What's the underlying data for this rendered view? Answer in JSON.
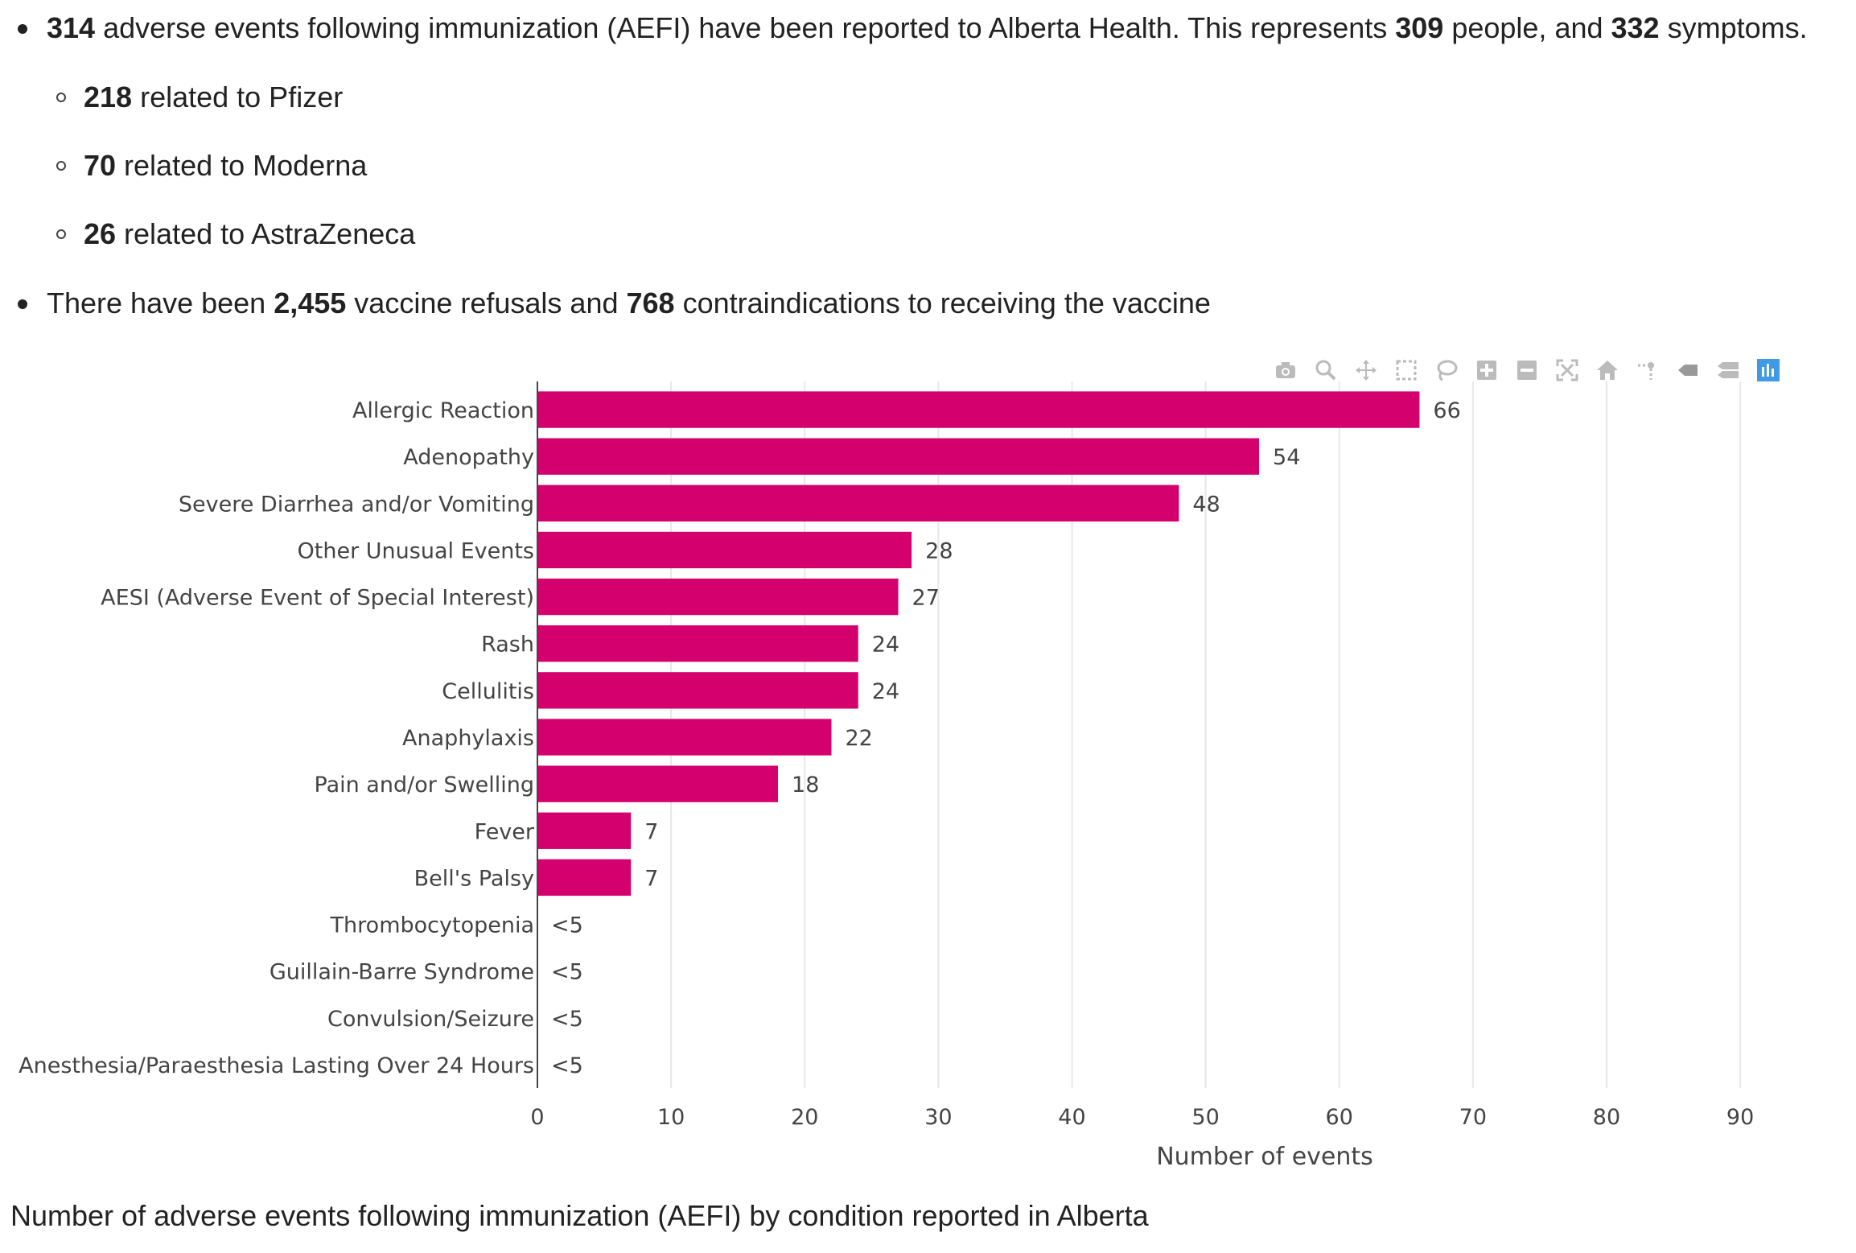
{
  "summary": {
    "line1": {
      "n1": "314",
      "t1": " adverse events following immunization (AEFI) have been reported to Alberta Health. This represents ",
      "n2": "309",
      "t2": " people, and ",
      "n3": "332",
      "t3": " symptoms."
    },
    "sub": [
      {
        "n": "218",
        "t": " related to Pfizer"
      },
      {
        "n": "70",
        "t": " related to Moderna"
      },
      {
        "n": "26",
        "t": " related to AstraZeneca"
      }
    ],
    "line2": {
      "t1": "There have been ",
      "n1": "2,455",
      "t2": " vaccine refusals and ",
      "n2": "768",
      "t3": " contraindications to receiving the vaccine"
    }
  },
  "modebar_icons": [
    "camera-icon",
    "zoom-icon",
    "pan-icon",
    "box-select-icon",
    "lasso-icon",
    "zoom-in-icon",
    "zoom-out-icon",
    "autoscale-icon",
    "reset-axes-icon",
    "spike-lines-icon",
    "hover-closest-icon",
    "hover-compare-icon",
    "plotly-logo-icon"
  ],
  "chart_data": {
    "type": "bar",
    "orientation": "horizontal",
    "categories": [
      "Allergic Reaction",
      "Adenopathy",
      "Severe Diarrhea and/or Vomiting",
      "Other Unusual Events",
      "AESI (Adverse Event of Special Interest)",
      "Rash",
      "Cellulitis",
      "Anaphylaxis",
      "Pain and/or Swelling",
      "Fever",
      "Bell's Palsy",
      "Thrombocytopenia",
      "Guillain-Barre Syndrome",
      "Convulsion/Seizure",
      "Anesthesia/Paraesthesia Lasting Over 24 Hours"
    ],
    "values": [
      66,
      54,
      48,
      28,
      27,
      24,
      24,
      22,
      18,
      7,
      7,
      0,
      0,
      0,
      0
    ],
    "data_labels": [
      "66",
      "54",
      "48",
      "28",
      "27",
      "24",
      "24",
      "22",
      "18",
      "7",
      "7",
      "<5",
      "<5",
      "<5",
      "<5"
    ],
    "xlabel": "Number of events",
    "xlim": [
      0,
      98
    ],
    "xticks": [
      0,
      10,
      20,
      30,
      40,
      50,
      60,
      70,
      80,
      90
    ],
    "bar_color": "#d4006e",
    "grid": true
  },
  "caption": "Number of adverse events following immunization (AEFI) by condition reported in Alberta"
}
